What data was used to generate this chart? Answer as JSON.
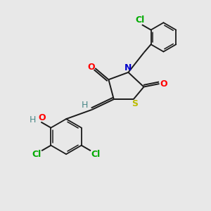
{
  "bg_color": "#e8e8e8",
  "bond_color": "#1a1a1a",
  "colors": {
    "O": "#ff0000",
    "N": "#0000cc",
    "S": "#bbbb00",
    "Cl": "#00aa00",
    "H": "#4a8888"
  },
  "figsize": [
    3.0,
    3.0
  ],
  "dpi": 100
}
